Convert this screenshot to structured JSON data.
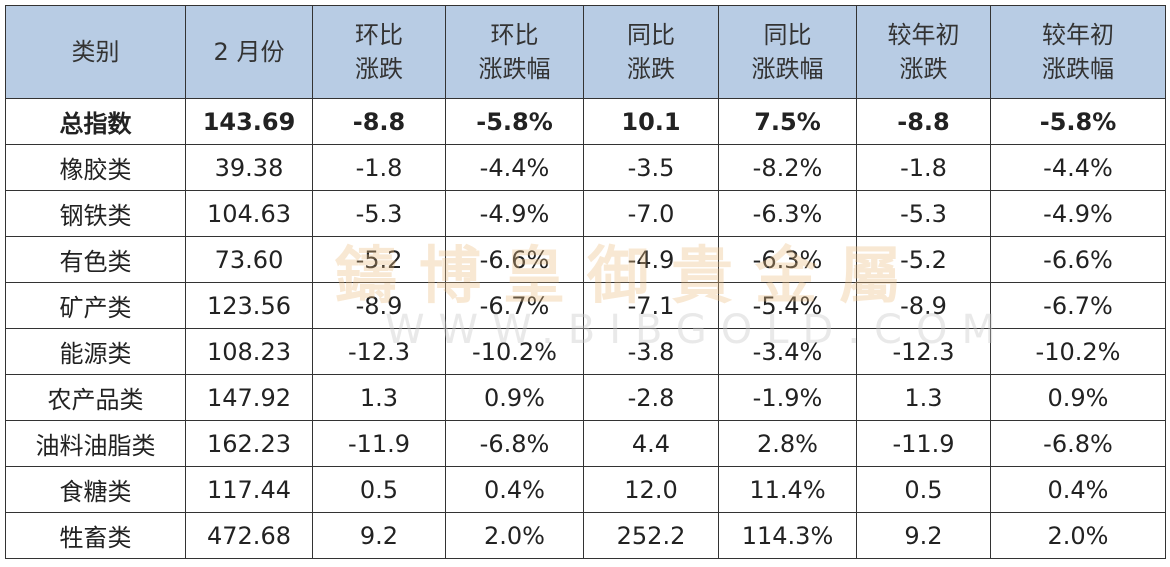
{
  "table": {
    "header": [
      [
        "类别"
      ],
      [
        "2 月份"
      ],
      [
        "环比",
        "涨跌"
      ],
      [
        "环比",
        "涨跌幅"
      ],
      [
        "同比",
        "涨跌"
      ],
      [
        "同比",
        "涨跌幅"
      ],
      [
        "较年初",
        "涨跌"
      ],
      [
        "较年初",
        "涨跌幅"
      ]
    ],
    "rows": [
      [
        "总指数",
        "143.69",
        "-8.8",
        "-5.8%",
        "10.1",
        "7.5%",
        "-8.8",
        "-5.8%"
      ],
      [
        "橡胶类",
        "39.38",
        "-1.8",
        "-4.4%",
        "-3.5",
        "-8.2%",
        "-1.8",
        "-4.4%"
      ],
      [
        "钢铁类",
        "104.63",
        "-5.3",
        "-4.9%",
        "-7.0",
        "-6.3%",
        "-5.3",
        "-4.9%"
      ],
      [
        "有色类",
        "73.60",
        "-5.2",
        "-6.6%",
        "-4.9",
        "-6.3%",
        "-5.2",
        "-6.6%"
      ],
      [
        "矿产类",
        "123.56",
        "-8.9",
        "-6.7%",
        "-7.1",
        "-5.4%",
        "-8.9",
        "-6.7%"
      ],
      [
        "能源类",
        "108.23",
        "-12.3",
        "-10.2%",
        "-3.8",
        "-3.4%",
        "-12.3",
        "-10.2%"
      ],
      [
        "农产品类",
        "147.92",
        "1.3",
        "0.9%",
        "-2.8",
        "-1.9%",
        "1.3",
        "0.9%"
      ],
      [
        "油料油脂类",
        "162.23",
        "-11.9",
        "-6.8%",
        "4.4",
        "2.8%",
        "-11.9",
        "-6.8%"
      ],
      [
        "食糖类",
        "117.44",
        "0.5",
        "0.4%",
        "12.0",
        "11.4%",
        "0.5",
        "0.4%"
      ],
      [
        "牲畜类",
        "472.68",
        "9.2",
        "2.0%",
        "252.2",
        "114.3%",
        "9.2",
        "2.0%"
      ]
    ]
  },
  "watermark": {
    "name": "鑄博皇御貴金屬",
    "url": "WWW.BIBGOLD.COM"
  }
}
